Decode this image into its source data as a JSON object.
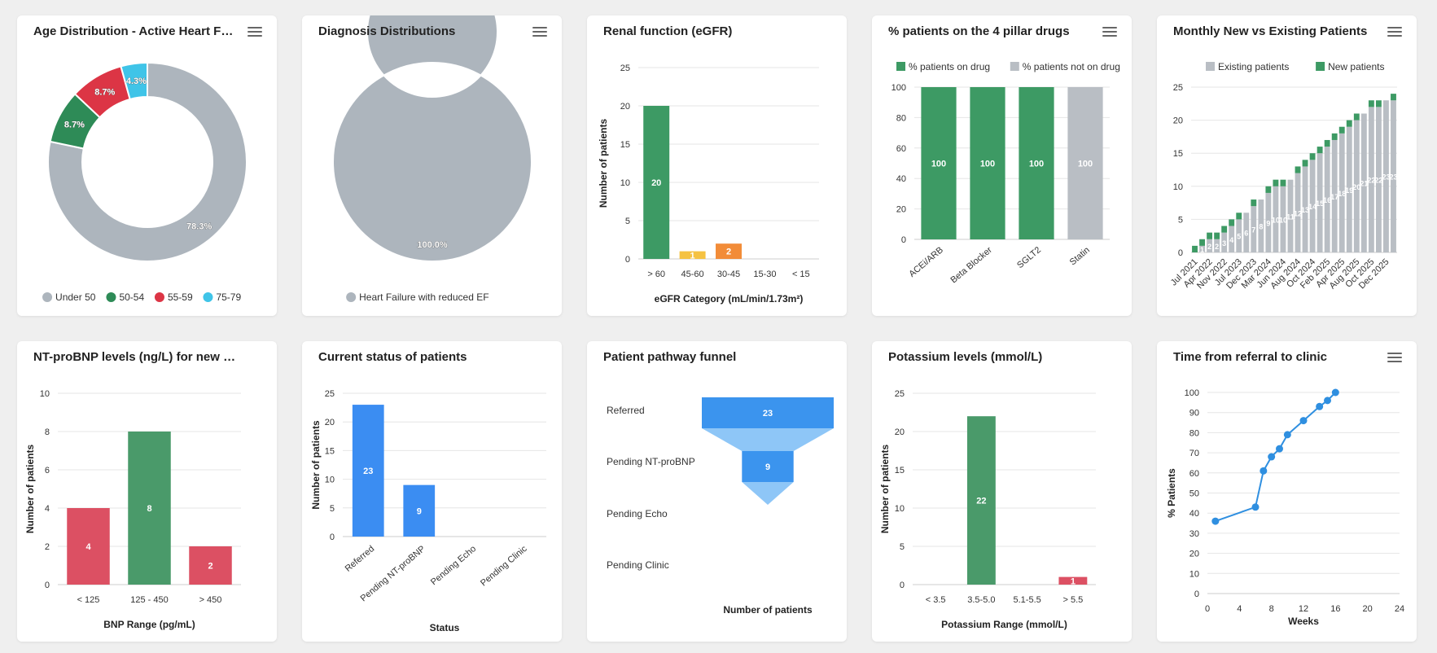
{
  "colors": {
    "grey": "#adb5bd",
    "green": "#2e8b57",
    "red": "#dc3545",
    "cyan": "#3fc4e8",
    "yellow": "#f5c242",
    "orange": "#f28c38",
    "blue": "#3b8df2",
    "lightblue": "#8cc4f5",
    "lightgrey": "#b9bec4"
  },
  "menu_icon": "hamburger-menu-icon",
  "cards": [
    {
      "title": "Age Distribution - Active Heart Failure Patients",
      "menu": true
    },
    {
      "title": "Diagnosis Distributions",
      "menu": true
    },
    {
      "title": "Renal function (eGFR)",
      "menu": false
    },
    {
      "title": "% patients on the 4 pillar drugs",
      "menu": true
    },
    {
      "title": "Monthly New vs Existing Patients",
      "menu": true
    },
    {
      "title": "NT-proBNP levels (ng/L) for new patients",
      "menu": false
    },
    {
      "title": "Current status of patients",
      "menu": false
    },
    {
      "title": "Patient pathway funnel",
      "menu": false
    },
    {
      "title": "Potassium levels (mmol/L)",
      "menu": false
    },
    {
      "title": "Time from referral to clinic",
      "menu": true
    }
  ],
  "chart_data": [
    {
      "id": "age",
      "type": "pie",
      "title": "Age Distribution - Active Heart Failure Patients",
      "donut": true,
      "slices": [
        {
          "label": "Under 50",
          "value": 78.3,
          "display": "78.3%",
          "color": "#adb5bd"
        },
        {
          "label": "50-54",
          "value": 8.7,
          "display": "8.7%",
          "color": "#2e8b57"
        },
        {
          "label": "55-59",
          "value": 8.7,
          "display": "8.7%",
          "color": "#dc3545"
        },
        {
          "label": "75-79",
          "value": 4.3,
          "display": "4.3%",
          "color": "#3fc4e8"
        }
      ],
      "legend": "bottom"
    },
    {
      "id": "diagnosis",
      "type": "pie",
      "title": "Diagnosis Distributions",
      "donut": true,
      "slices": [
        {
          "label": "Heart Failure with reduced EF",
          "value": 100,
          "display": "100.0%",
          "color": "#adb5bd"
        }
      ],
      "legend": "bottom"
    },
    {
      "id": "egfr",
      "type": "bar",
      "title": "Renal function (eGFR)",
      "categories": [
        "> 60",
        "45-60",
        "30-45",
        "15-30",
        "< 15"
      ],
      "values": [
        20,
        1,
        2,
        0,
        0
      ],
      "colors": [
        "#3d9a64",
        "#f5c242",
        "#f28c38",
        "#f28c38",
        "#f28c38"
      ],
      "xlabel": "eGFR Category (mL/min/1.73m²)",
      "ylabel": "Number of patients",
      "ylim": [
        0,
        25
      ],
      "yticks": [
        0,
        5,
        10,
        15,
        20,
        25
      ],
      "grid": true
    },
    {
      "id": "pillars",
      "type": "bar",
      "stacked": true,
      "title": "% patients on the 4 pillar drugs",
      "categories": [
        "ACEi/ARB",
        "Beta Blocker",
        "SGLT2",
        "Statin"
      ],
      "series": [
        {
          "name": "% patients on drug",
          "values": [
            100,
            100,
            100,
            0
          ],
          "color": "#3d9a64"
        },
        {
          "name": "% patients not on drug",
          "values": [
            0,
            0,
            0,
            100
          ],
          "color": "#b9bec4"
        }
      ],
      "ylim": [
        0,
        100
      ],
      "yticks": [
        0,
        20,
        40,
        60,
        80,
        100
      ],
      "legend": "top",
      "grid": true
    },
    {
      "id": "monthly",
      "type": "bar",
      "stacked": true,
      "title": "Monthly New vs Existing Patients",
      "x": [
        "Jul 2021",
        "",
        "Apr 2022",
        "",
        "Nov 2022",
        "",
        "Jul 2023",
        "",
        "Dec 2023",
        "",
        "Mar 2024",
        "",
        "Jun 2024",
        "",
        "Aug 2024",
        "",
        "Oct 2024",
        "",
        "Feb 2025",
        "",
        "Apr 2025",
        "",
        "Aug 2025",
        "",
        "Oct 2025",
        "",
        "Dec 2025",
        ""
      ],
      "series": [
        {
          "name": "Existing patients",
          "values": [
            0,
            1,
            2,
            2,
            3,
            4,
            5,
            6,
            7,
            8,
            9,
            10,
            10,
            11,
            12,
            13,
            14,
            15,
            16,
            17,
            18,
            19,
            20,
            21,
            22,
            22,
            23,
            23
          ],
          "color": "#b9bec4"
        },
        {
          "name": "New patients",
          "values": [
            1,
            1,
            1,
            1,
            1,
            1,
            1,
            0,
            1,
            0,
            1,
            1,
            1,
            0,
            1,
            1,
            1,
            1,
            1,
            1,
            1,
            1,
            1,
            0,
            1,
            1,
            0,
            1
          ],
          "color": "#3d9a64"
        }
      ],
      "ylim": [
        0,
        25
      ],
      "yticks": [
        0,
        5,
        10,
        15,
        20,
        25
      ],
      "legend": "top",
      "grid": true
    },
    {
      "id": "ntprobnp",
      "type": "bar",
      "title": "NT-proBNP levels (ng/L) for new patients",
      "categories": [
        "< 125",
        "125 - 450",
        "> 450"
      ],
      "values": [
        4,
        8,
        2
      ],
      "colors": [
        "#dc5063",
        "#4a9a6a",
        "#dc5063"
      ],
      "xlabel": "BNP Range (pg/mL)",
      "ylabel": "Number of patients",
      "ylim": [
        0,
        10
      ],
      "yticks": [
        0,
        2,
        4,
        6,
        8,
        10
      ],
      "grid": true
    },
    {
      "id": "status",
      "type": "bar",
      "title": "Current status of patients",
      "categories": [
        "Referred",
        "Pending NT-proBNP",
        "Pending Echo",
        "Pending Clinic"
      ],
      "values": [
        23,
        9,
        0,
        0
      ],
      "colors": [
        "#3b8df2",
        "#3b8df2",
        "#3b8df2",
        "#3b8df2"
      ],
      "xlabel": "Status",
      "ylabel": "Number of patients",
      "ylim": [
        0,
        25
      ],
      "yticks": [
        0,
        5,
        10,
        15,
        20,
        25
      ],
      "grid": true
    },
    {
      "id": "funnel",
      "type": "funnel",
      "title": "Patient pathway funnel",
      "stages": [
        {
          "label": "Referred",
          "value": 23
        },
        {
          "label": "Pending NT-proBNP",
          "value": 9
        },
        {
          "label": "Pending Echo",
          "value": 0
        },
        {
          "label": "Pending Clinic",
          "value": 0
        }
      ],
      "xlabel": "Number of patients"
    },
    {
      "id": "potassium",
      "type": "bar",
      "title": "Potassium levels (mmol/L)",
      "categories": [
        "< 3.5",
        "3.5-5.0",
        "5.1-5.5",
        "> 5.5"
      ],
      "values": [
        0,
        22,
        0,
        1
      ],
      "colors": [
        "#4a9a6a",
        "#4a9a6a",
        "#dc5063",
        "#dc5063"
      ],
      "xlabel": "Potassium Range (mmol/L)",
      "ylabel": "Number of patients",
      "ylim": [
        0,
        25
      ],
      "yticks": [
        0,
        5,
        10,
        15,
        20,
        25
      ],
      "grid": true
    },
    {
      "id": "referral",
      "type": "line",
      "title": "Time from referral to clinic",
      "points": [
        [
          1,
          36
        ],
        [
          6,
          43
        ],
        [
          7,
          61
        ],
        [
          8,
          68
        ],
        [
          9,
          72
        ],
        [
          10,
          79
        ],
        [
          12,
          86
        ],
        [
          14,
          93
        ],
        [
          15,
          96
        ],
        [
          16,
          100
        ]
      ],
      "xlabel": "Weeks",
      "ylabel": "% Patients",
      "xlim": [
        0,
        24
      ],
      "xticks": [
        0,
        4,
        8,
        12,
        16,
        20,
        24
      ],
      "ylim": [
        0,
        100
      ],
      "yticks": [
        0,
        10,
        20,
        30,
        40,
        50,
        60,
        70,
        80,
        90,
        100
      ],
      "color": "#2f8fe0",
      "grid": true
    }
  ]
}
